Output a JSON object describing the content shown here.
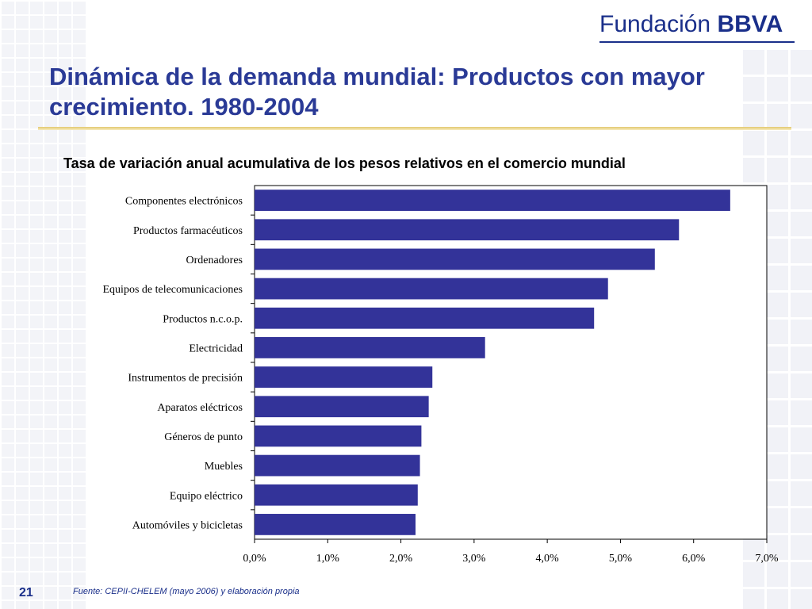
{
  "logo": {
    "prefix": "Fundación",
    "brand": "BBVA"
  },
  "title": "Dinámica de la demanda mundial: Productos con mayor crecimiento. 1980-2004",
  "chart_data": {
    "type": "bar",
    "orientation": "horizontal",
    "title": "Tasa de variación anual acumulativa de los pesos relativos en el comercio mundial",
    "categories": [
      "Componentes electrónicos",
      "Productos farmacéuticos",
      "Ordenadores",
      "Equipos de telecomunicaciones",
      "Productos n.c.o.p.",
      "Electricidad",
      "Instrumentos de precisión",
      "Aparatos eléctricos",
      "Géneros de punto",
      "Muebles",
      "Equipo eléctrico",
      "Automóviles y bicicletas"
    ],
    "values": [
      6.5,
      5.8,
      5.47,
      4.83,
      4.64,
      3.15,
      2.43,
      2.38,
      2.28,
      2.26,
      2.23,
      2.2
    ],
    "xlim": [
      0,
      7
    ],
    "xticks": [
      "0,0%",
      "1,0%",
      "2,0%",
      "3,0%",
      "4,0%",
      "5,0%",
      "6,0%",
      "7,0%"
    ],
    "bar_color": "#333399",
    "grid": false
  },
  "footer": {
    "page_number": "21",
    "source": "Fuente: CEPII-CHELEM  (mayo 2006) y elaboración propia"
  }
}
